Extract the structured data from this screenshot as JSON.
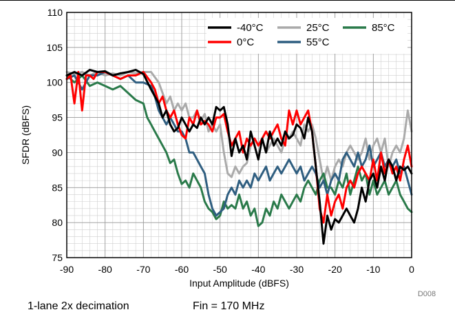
{
  "figure_id": "D008",
  "caption": {
    "left": "1-lane 2x decimation",
    "right": "Fin = 170 MHz"
  },
  "chart_data": {
    "type": "line",
    "xlabel": "Input Amplitude (dBFS)",
    "ylabel": "SFDR (dBFS)",
    "xlim": [
      -90,
      0
    ],
    "ylim": [
      75,
      110
    ],
    "xticks": [
      -90,
      -80,
      -70,
      -60,
      -50,
      -40,
      -30,
      -20,
      -10,
      0
    ],
    "yticks": [
      75,
      80,
      85,
      90,
      95,
      100,
      105,
      110
    ],
    "grid": true,
    "legend_position": "top-right",
    "series": [
      {
        "name": "-40°C",
        "color": "#000000",
        "x": [
          -90,
          -88,
          -86,
          -84,
          -82,
          -80,
          -78,
          -76,
          -74,
          -72,
          -70,
          -68,
          -66,
          -65,
          -64,
          -63,
          -62,
          -61,
          -60,
          -59,
          -58,
          -57,
          -56,
          -55,
          -54,
          -53,
          -52,
          -51,
          -50,
          -49,
          -48,
          -47,
          -46,
          -45,
          -44,
          -43,
          -42,
          -41,
          -40,
          -39,
          -38,
          -37,
          -36,
          -35,
          -34,
          -33,
          -32,
          -31,
          -30,
          -29,
          -28,
          -27,
          -26,
          -25,
          -24,
          -23,
          -22,
          -21,
          -20,
          -19,
          -18,
          -17,
          -16,
          -15,
          -14,
          -13,
          -12,
          -11,
          -10,
          -9,
          -8,
          -7,
          -6,
          -5,
          -4,
          -3,
          -2,
          -1,
          0
        ],
        "y": [
          101,
          101.5,
          101,
          101.8,
          101.5,
          101.6,
          101,
          101.3,
          101.5,
          101.8,
          101.2,
          99,
          97,
          95,
          96,
          94,
          93,
          93.5,
          95,
          94,
          93,
          94,
          93.5,
          95,
          94,
          95,
          94,
          96.5,
          96,
          96.5,
          94,
          89.5,
          92,
          90,
          91,
          89,
          93,
          91,
          89,
          92,
          90,
          93,
          91,
          92,
          91,
          93,
          92,
          92.5,
          94,
          93.5,
          92,
          95,
          93,
          88,
          83,
          77,
          81,
          79,
          80.5,
          80,
          81,
          82,
          81,
          80,
          82,
          85,
          83,
          86,
          87,
          85,
          88,
          86,
          89,
          88,
          86,
          88,
          87.5,
          88,
          87
        ]
      },
      {
        "name": "0°C",
        "color": "#ff0000",
        "x": [
          -90,
          -89,
          -88,
          -87,
          -86,
          -85,
          -84,
          -83,
          -82,
          -80,
          -78,
          -76,
          -74,
          -72,
          -70,
          -68,
          -67,
          -66,
          -65,
          -64,
          -63,
          -62,
          -61,
          -60,
          -59,
          -58,
          -57,
          -56,
          -55,
          -54,
          -53,
          -52,
          -51,
          -50,
          -49,
          -48,
          -47,
          -46,
          -45,
          -44,
          -43,
          -42,
          -41,
          -40,
          -39,
          -38,
          -37,
          -36,
          -35,
          -34,
          -33,
          -32,
          -31,
          -30,
          -29,
          -28,
          -27,
          -26,
          -25,
          -24,
          -23,
          -22,
          -21,
          -20,
          -19,
          -18,
          -17,
          -16,
          -15,
          -14,
          -13,
          -12,
          -11,
          -10,
          -9,
          -8,
          -7,
          -6,
          -5,
          -4,
          -3,
          -2,
          -1,
          0
        ],
        "y": [
          100.5,
          101,
          97,
          101.5,
          96,
          101,
          101,
          100.5,
          101.5,
          101.5,
          101,
          100.5,
          101,
          101,
          101.5,
          100,
          99,
          97,
          98,
          96,
          95,
          96,
          94,
          92.5,
          92,
          95,
          94,
          96,
          94,
          94.5,
          94,
          93,
          95,
          95,
          95.5,
          93,
          91,
          92,
          93,
          90,
          92,
          91,
          92,
          91,
          92,
          93,
          92,
          93,
          94,
          92,
          91,
          96,
          94,
          96,
          94,
          95,
          96,
          93,
          88,
          82,
          80,
          84,
          81,
          83,
          84,
          82,
          85,
          86,
          85,
          87,
          88,
          87,
          86,
          89,
          86,
          90,
          87,
          89,
          87,
          88,
          86,
          89,
          91,
          88
        ]
      },
      {
        "name": "25°C",
        "color": "#aaaaaa",
        "x": [
          -90,
          -88,
          -86,
          -84,
          -82,
          -80,
          -78,
          -76,
          -74,
          -72,
          -70,
          -68,
          -66,
          -64,
          -63,
          -62,
          -61,
          -60,
          -59,
          -58,
          -57,
          -56,
          -55,
          -54,
          -53,
          -52,
          -51,
          -50,
          -49,
          -48,
          -47,
          -46,
          -45,
          -44,
          -43,
          -42,
          -41,
          -40,
          -39,
          -38,
          -37,
          -36,
          -35,
          -34,
          -33,
          -32,
          -31,
          -30,
          -29,
          -28,
          -27,
          -26,
          -25,
          -24,
          -23,
          -22,
          -21,
          -20,
          -19,
          -18,
          -17,
          -16,
          -15,
          -14,
          -13,
          -12,
          -11,
          -10,
          -9,
          -8,
          -7,
          -6,
          -5,
          -4,
          -3,
          -2,
          -1,
          0
        ],
        "y": [
          101.5,
          101.2,
          101.5,
          101,
          101.5,
          101,
          101.3,
          101,
          101.5,
          101.3,
          101.5,
          101.5,
          100,
          97,
          98,
          96,
          97,
          96,
          97,
          95,
          95,
          96,
          94.5,
          95.5,
          93,
          94,
          93,
          94,
          90,
          87,
          86.5,
          88,
          87,
          88,
          88.5,
          91,
          92,
          91,
          92,
          90,
          91,
          92,
          91,
          90,
          92,
          92,
          93,
          92,
          91,
          94,
          93,
          94,
          92,
          89,
          86,
          88,
          86,
          88,
          89,
          88,
          90,
          91,
          90,
          89,
          90,
          92,
          89,
          91,
          92,
          90,
          92,
          88,
          90,
          91,
          90,
          92,
          96,
          93
        ]
      },
      {
        "name": "55°C",
        "color": "#2f5e80",
        "x": [
          -90,
          -88,
          -86,
          -84,
          -82,
          -80,
          -78,
          -76,
          -74,
          -72,
          -70,
          -68,
          -67,
          -66,
          -65,
          -64,
          -63,
          -62,
          -61,
          -60,
          -59,
          -58,
          -57,
          -56,
          -55,
          -54,
          -53,
          -52,
          -51,
          -50,
          -49,
          -48,
          -47,
          -46,
          -45,
          -44,
          -43,
          -42,
          -41,
          -40,
          -39,
          -38,
          -37,
          -36,
          -35,
          -34,
          -33,
          -32,
          -31,
          -30,
          -29,
          -28,
          -27,
          -26,
          -25,
          -24,
          -23,
          -22,
          -21,
          -20,
          -19,
          -18,
          -17,
          -16,
          -15,
          -14,
          -13,
          -12,
          -11,
          -10,
          -9,
          -8,
          -7,
          -6,
          -5,
          -4,
          -3,
          -2,
          -1,
          0
        ],
        "y": [
          100.5,
          101,
          99,
          101,
          101,
          101.5,
          101,
          100.5,
          101,
          100,
          100,
          99.5,
          98,
          96,
          95,
          94,
          95,
          94,
          93,
          93,
          92,
          90,
          90,
          89,
          88,
          87,
          84,
          82,
          81,
          81.5,
          82,
          84,
          85,
          84,
          86,
          85,
          86,
          85,
          87,
          86,
          87,
          88,
          86,
          87,
          88,
          87,
          88,
          89,
          88,
          87,
          88,
          86,
          87,
          88,
          87,
          85,
          86,
          84,
          86,
          87,
          86,
          89,
          90,
          89,
          88,
          90,
          88,
          89,
          91,
          88,
          89,
          90,
          88,
          89,
          88,
          89,
          87,
          88,
          86,
          84
        ]
      },
      {
        "name": "85°C",
        "color": "#2a7a4a",
        "x": [
          -90,
          -88,
          -86,
          -84,
          -82,
          -80,
          -78,
          -76,
          -74,
          -72,
          -70,
          -69,
          -68,
          -67,
          -66,
          -65,
          -64,
          -63,
          -62,
          -61,
          -60,
          -59,
          -58,
          -57,
          -56,
          -55,
          -54,
          -53,
          -52,
          -51,
          -50,
          -49,
          -48,
          -47,
          -46,
          -45,
          -44,
          -43,
          -42,
          -41,
          -40,
          -39,
          -38,
          -37,
          -36,
          -35,
          -34,
          -33,
          -32,
          -31,
          -30,
          -29,
          -28,
          -27,
          -26,
          -25,
          -24,
          -23,
          -22,
          -21,
          -20,
          -19,
          -18,
          -17,
          -16,
          -15,
          -14,
          -13,
          -12,
          -11,
          -10,
          -9,
          -8,
          -7,
          -6,
          -5,
          -4,
          -3,
          -2,
          -1,
          0
        ],
        "y": [
          101,
          100,
          101,
          99.5,
          100,
          99.5,
          99,
          99.5,
          98.5,
          97.5,
          97,
          95,
          94,
          93,
          92,
          91,
          90,
          88.5,
          89,
          87,
          85.5,
          86,
          85,
          87,
          86,
          85,
          83,
          82,
          81.5,
          80.5,
          81,
          83,
          82,
          82.5,
          82,
          84,
          82,
          83,
          81,
          82,
          79.5,
          80,
          82,
          81,
          83,
          82,
          84,
          83,
          82,
          83,
          84,
          83,
          85,
          86,
          85,
          84,
          86,
          87,
          85,
          85,
          84,
          86,
          85,
          87,
          84,
          86,
          88,
          86,
          87,
          84,
          86,
          84,
          85,
          86,
          84,
          85,
          86,
          84,
          83,
          82,
          81.5
        ]
      }
    ]
  }
}
